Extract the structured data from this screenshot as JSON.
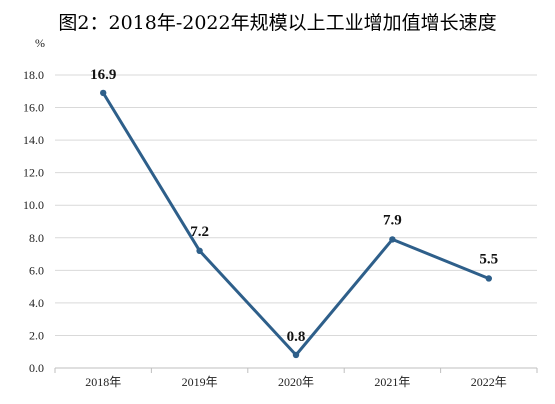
{
  "chart_data": {
    "type": "line",
    "title": "图2：2018年-2022年规模以上工业增加值增长速度",
    "ylabel": "%",
    "xlabel": "",
    "categories": [
      "2018年",
      "2019年",
      "2020年",
      "2021年",
      "2022年"
    ],
    "series": [
      {
        "values": [
          16.9,
          7.2,
          0.8,
          7.9,
          5.5
        ],
        "data_labels": [
          "16.9",
          "7.2",
          "0.8",
          "7.9",
          "5.5"
        ]
      }
    ],
    "ylim": [
      0,
      18
    ],
    "yticks": [
      "0.0",
      "2.0",
      "4.0",
      "6.0",
      "8.0",
      "10.0",
      "12.0",
      "14.0",
      "16.0",
      "18.0"
    ],
    "ytick_values": [
      0,
      2,
      4,
      6,
      8,
      10,
      12,
      14,
      16,
      18
    ],
    "grid": true,
    "legend": "none",
    "line_color": "#2e5f8a"
  }
}
